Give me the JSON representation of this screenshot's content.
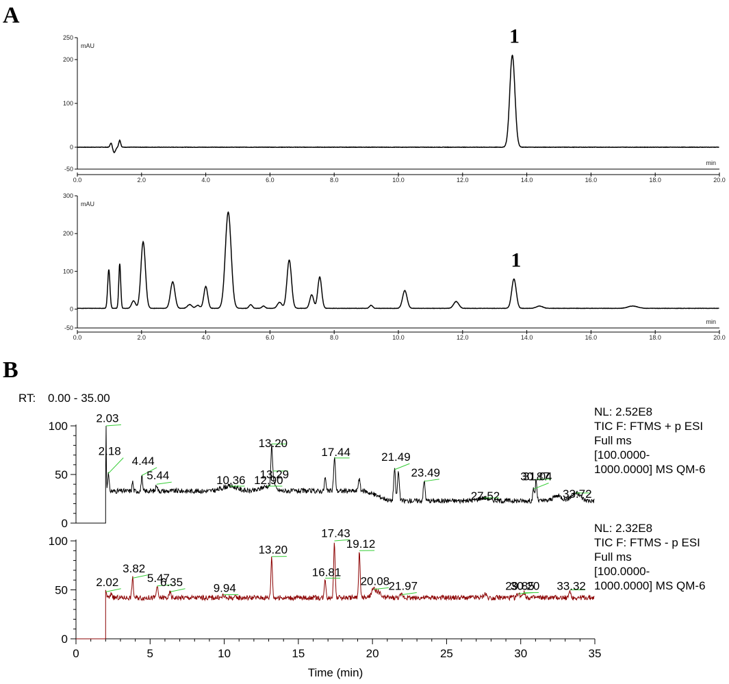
{
  "panels": {
    "a": "A",
    "b": "B"
  },
  "colors": {
    "black": "#000000",
    "dark_red": "#8b0000",
    "leader_green": "#33cc33",
    "range_blue": "#1a2fc0"
  },
  "chart_data": [
    {
      "id": "a1",
      "type": "line",
      "unit_label": "mAU",
      "xlabel": "min",
      "xlim": [
        0,
        20
      ],
      "ylim": [
        -50,
        250
      ],
      "x_ticks": [
        "0.0",
        "2.0",
        "4.0",
        "6.0",
        "8.0",
        "10.0",
        "12.0",
        "14.0",
        "16.0",
        "18.0",
        "20.0"
      ],
      "y_ticks": [
        "250",
        "200",
        "100",
        "0",
        "-50"
      ],
      "baseline": 0,
      "peaks": [
        [
          1.05,
          10,
          0.03
        ],
        [
          1.15,
          -12,
          0.04
        ],
        [
          1.32,
          16,
          0.03
        ],
        [
          13.55,
          210,
          0.08
        ]
      ],
      "annotations": [
        {
          "x": 13.55,
          "label": "1"
        }
      ]
    },
    {
      "id": "a2",
      "type": "line",
      "unit_label": "mAU",
      "xlabel": "min",
      "xlim": [
        0,
        20
      ],
      "ylim": [
        -50,
        300
      ],
      "x_ticks": [
        "0.0",
        "2.0",
        "4.0",
        "6.0",
        "8.0",
        "10.0",
        "12.0",
        "14.0",
        "16.0",
        "18.0",
        "20.0"
      ],
      "y_ticks": [
        "300",
        "200",
        "100",
        "0",
        "-50"
      ],
      "baseline": 2,
      "peaks": [
        [
          0.98,
          103,
          0.035
        ],
        [
          1.32,
          118,
          0.03
        ],
        [
          1.75,
          20,
          0.06
        ],
        [
          2.05,
          176,
          0.07
        ],
        [
          2.97,
          70,
          0.07
        ],
        [
          3.5,
          10,
          0.07
        ],
        [
          3.75,
          8,
          0.06
        ],
        [
          4.0,
          58,
          0.06
        ],
        [
          4.7,
          255,
          0.09
        ],
        [
          5.4,
          10,
          0.05
        ],
        [
          5.8,
          6,
          0.05
        ],
        [
          6.3,
          16,
          0.07
        ],
        [
          6.6,
          128,
          0.07
        ],
        [
          7.3,
          36,
          0.06
        ],
        [
          7.55,
          83,
          0.06
        ],
        [
          9.15,
          8,
          0.05
        ],
        [
          10.2,
          47,
          0.07
        ],
        [
          11.8,
          18,
          0.08
        ],
        [
          13.6,
          78,
          0.07
        ],
        [
          14.4,
          6,
          0.1
        ],
        [
          17.3,
          6,
          0.15
        ]
      ],
      "annotations": [
        {
          "x": 13.6,
          "label": "1"
        }
      ]
    },
    {
      "id": "b1",
      "type": "line",
      "range_label": "RT:",
      "range_value": "0.00 - 35.00",
      "xlim": [
        0,
        35
      ],
      "ylim": [
        0,
        100
      ],
      "y_ticks": [
        "100",
        "50",
        "0"
      ],
      "start_x": 2.0,
      "baseline": 33,
      "info": [
        "NL: 2.52E8",
        "TIC F: FTMS + p ESI",
        "Full ms",
        "[100.0000-",
        "1000.0000]  MS QM-6"
      ],
      "peaks": [
        [
          2.03,
          110,
          0.015
        ],
        [
          2.18,
          18,
          0.05
        ],
        [
          3.82,
          10,
          0.04
        ],
        [
          4.44,
          16,
          0.04
        ],
        [
          5.44,
          7,
          0.05
        ],
        [
          10.36,
          5,
          0.5
        ],
        [
          12.9,
          5,
          0.4
        ],
        [
          13.2,
          38,
          0.05
        ],
        [
          13.29,
          10,
          0.1
        ],
        [
          16.81,
          14,
          0.05
        ],
        [
          17.44,
          34,
          0.06
        ],
        [
          19.1,
          13,
          0.06
        ],
        [
          21.49,
          32,
          0.06
        ],
        [
          21.75,
          30,
          0.06
        ],
        [
          23.49,
          20,
          0.06
        ],
        [
          27.52,
          3,
          0.4
        ],
        [
          30.87,
          12,
          0.05
        ],
        [
          31.04,
          22,
          0.05
        ],
        [
          32.5,
          5,
          0.3
        ],
        [
          33.72,
          8,
          0.3
        ]
      ],
      "baseline_shift": [
        [
          19.5,
          0
        ],
        [
          21.2,
          -10
        ]
      ],
      "labels": [
        {
          "text": "2.03",
          "x": 2.03,
          "y": 104
        },
        {
          "text": "2.18",
          "x": 2.18,
          "y": 70
        },
        {
          "text": "4.44",
          "x": 4.44,
          "y": 60
        },
        {
          "text": "5.44",
          "x": 5.44,
          "y": 45
        },
        {
          "text": "10.36",
          "x": 10.36,
          "y": 40
        },
        {
          "text": "12.90",
          "x": 12.9,
          "y": 40
        },
        {
          "text": "13.20",
          "x": 13.2,
          "y": 78
        },
        {
          "text": "13.29",
          "x": 13.29,
          "y": 46
        },
        {
          "text": "17.44",
          "x": 17.44,
          "y": 69
        },
        {
          "text": "21.49",
          "x": 21.49,
          "y": 64
        },
        {
          "text": "23.49",
          "x": 23.49,
          "y": 48
        },
        {
          "text": "27.52",
          "x": 27.52,
          "y": 24
        },
        {
          "text": "30.87",
          "x": 30.87,
          "y": 44
        },
        {
          "text": "31.04",
          "x": 31.04,
          "y": 44
        },
        {
          "text": "33.72",
          "x": 33.72,
          "y": 26
        }
      ]
    },
    {
      "id": "b2",
      "type": "line",
      "xlabel": "Time (min)",
      "xlim": [
        0,
        35
      ],
      "ylim": [
        0,
        100
      ],
      "x_ticks": [
        "0",
        "5",
        "10",
        "15",
        "20",
        "25",
        "30",
        "35"
      ],
      "y_ticks": [
        "100",
        "50",
        "0"
      ],
      "start_x": 2.0,
      "baseline": 42,
      "info": [
        "NL: 2.32E8",
        "TIC F: FTMS - p ESI",
        "Full ms",
        "[100.0000-",
        "1000.0000]  MS QM-6"
      ],
      "peaks": [
        [
          2.02,
          6,
          0.05
        ],
        [
          2.4,
          5,
          0.05
        ],
        [
          3.82,
          20,
          0.05
        ],
        [
          5.47,
          12,
          0.05
        ],
        [
          6.35,
          6,
          0.05
        ],
        [
          9.94,
          3,
          0.05
        ],
        [
          13.2,
          42,
          0.05
        ],
        [
          16.81,
          20,
          0.05
        ],
        [
          17.43,
          58,
          0.05
        ],
        [
          19.12,
          48,
          0.05
        ],
        [
          20.08,
          8,
          0.15
        ],
        [
          20.4,
          5,
          0.15
        ],
        [
          21.97,
          3,
          0.1
        ],
        [
          27.6,
          4,
          0.1
        ],
        [
          29.85,
          4,
          0.1
        ],
        [
          30.2,
          5,
          0.1
        ],
        [
          33.32,
          8,
          0.05
        ]
      ],
      "labels": [
        {
          "text": "2.02",
          "x": 2.02,
          "y": 54
        },
        {
          "text": "3.82",
          "x": 3.82,
          "y": 68
        },
        {
          "text": "5.47",
          "x": 5.47,
          "y": 58
        },
        {
          "text": "6.35",
          "x": 6.35,
          "y": 54
        },
        {
          "text": "9.94",
          "x": 9.94,
          "y": 48
        },
        {
          "text": "13.20",
          "x": 13.2,
          "y": 87
        },
        {
          "text": "16.81",
          "x": 16.81,
          "y": 64
        },
        {
          "text": "17.43",
          "x": 17.43,
          "y": 104
        },
        {
          "text": "19.12",
          "x": 19.12,
          "y": 93
        },
        {
          "text": "20.08",
          "x": 20.08,
          "y": 55
        },
        {
          "text": "21.97",
          "x": 21.97,
          "y": 50
        },
        {
          "text": "29.85",
          "x": 29.85,
          "y": 50
        },
        {
          "text": "30.20",
          "x": 30.2,
          "y": 50
        },
        {
          "text": "33.32",
          "x": 33.32,
          "y": 50
        }
      ]
    }
  ]
}
